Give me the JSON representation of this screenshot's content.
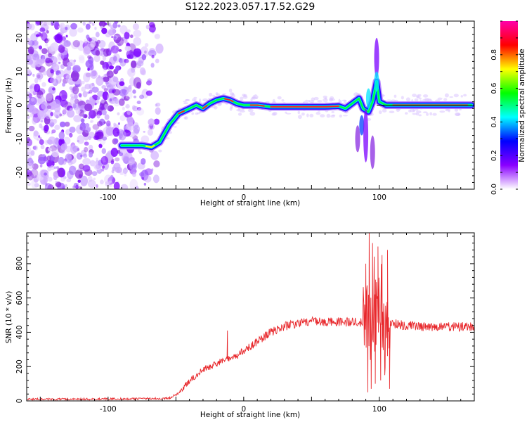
{
  "figure": {
    "title": "S122.2023.057.17.52.G29"
  },
  "chart_data": [
    {
      "type": "heatmap",
      "xlabel": "Height of straight line (km)",
      "ylabel": "Frequency (Hz)",
      "xlim": [
        -160,
        170
      ],
      "ylim": [
        -25,
        25
      ],
      "x_ticks": [
        -100,
        0,
        100
      ],
      "y_ticks": [
        -20,
        -10,
        0,
        10,
        20
      ],
      "colorbar": {
        "label": "Normalized spectral amplitude",
        "range": [
          0.0,
          1.0
        ],
        "ticks": [
          "0.0",
          "0.2",
          "0.4",
          "0.6",
          "0.8"
        ],
        "colormap": [
          "#ffffff",
          "#8a00ff",
          "#0000ff",
          "#00ffff",
          "#00ff00",
          "#ffff00",
          "#ff0000",
          "#ff00aa"
        ]
      },
      "noise_region_x": [
        -160,
        -62
      ],
      "ridge": {
        "x": [
          -90,
          -75,
          -68,
          -62,
          -55,
          -48,
          -40,
          -35,
          -30,
          -25,
          -20,
          -15,
          -10,
          -5,
          0,
          10,
          20,
          30,
          40,
          50,
          60,
          70,
          75,
          80,
          85,
          88,
          92,
          95,
          98,
          100,
          105,
          120,
          140,
          160,
          168
        ],
        "freq": [
          -12,
          -12,
          -12.5,
          -11,
          -6,
          -2.5,
          -1,
          0,
          -1,
          0.5,
          1.5,
          2,
          1.5,
          0.5,
          0,
          0,
          -0.5,
          -0.5,
          -0.5,
          -0.5,
          -0.5,
          -0.3,
          -1,
          0.5,
          2,
          -1,
          -2,
          1,
          7,
          1,
          0,
          0,
          0,
          0,
          0
        ]
      },
      "reference_line_x": [
        98,
        170
      ]
    },
    {
      "type": "line",
      "xlabel": "Height of straight line (km)",
      "ylabel": "SNR (10 * v/v)",
      "xlim": [
        -160,
        170
      ],
      "ylim": [
        0,
        980
      ],
      "x_ticks": [
        -100,
        0,
        100
      ],
      "y_ticks": [
        0,
        200,
        400,
        600,
        800
      ],
      "color": "#e8282c",
      "profile": {
        "x": [
          -160,
          -120,
          -80,
          -55,
          -48,
          -40,
          -30,
          -20,
          -12,
          -5,
          0,
          5,
          10,
          20,
          30,
          40,
          50,
          60,
          70,
          80,
          86,
          100,
          110,
          120,
          130,
          140,
          150,
          160,
          170
        ],
        "snr": [
          10,
          10,
          12,
          15,
          45,
          120,
          180,
          220,
          240,
          265,
          295,
          320,
          345,
          400,
          435,
          455,
          462,
          465,
          462,
          458,
          458,
          460,
          450,
          440,
          432,
          432,
          432,
          432,
          432
        ]
      },
      "spikes": [
        {
          "x": -12,
          "snr": 410
        },
        {
          "x": 90,
          "snr": 800
        },
        {
          "x": 91.5,
          "snr": 50
        },
        {
          "x": 92.5,
          "snr": 980
        },
        {
          "x": 94,
          "snr": 70
        },
        {
          "x": 95,
          "snr": 920
        },
        {
          "x": 97,
          "snr": 100
        },
        {
          "x": 99,
          "snr": 900
        },
        {
          "x": 101,
          "snr": 120
        },
        {
          "x": 102,
          "snr": 850
        },
        {
          "x": 104,
          "snr": 150
        },
        {
          "x": 106,
          "snr": 880
        },
        {
          "x": 107.5,
          "snr": 70
        }
      ]
    }
  ]
}
